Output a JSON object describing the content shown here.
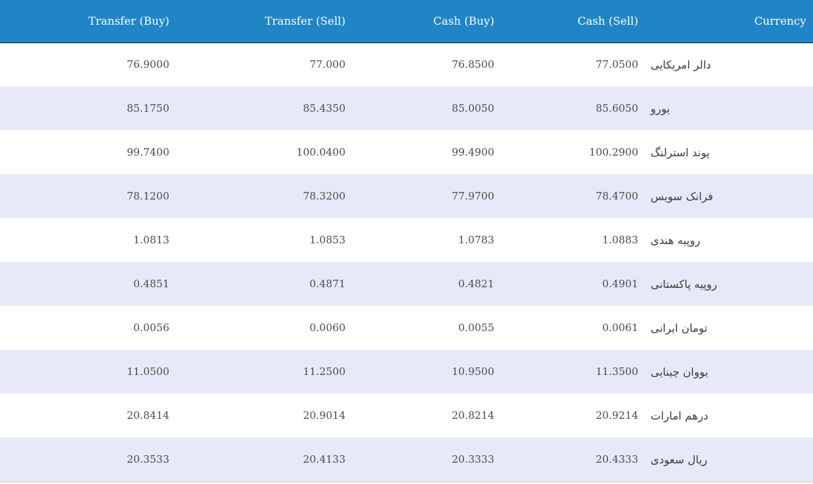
{
  "table": {
    "headers": {
      "transfer_buy": "Transfer (Buy)",
      "transfer_sell": "Transfer (Sell)",
      "cash_buy": "Cash (Buy)",
      "cash_sell": "Cash (Sell)",
      "currency": "Currency"
    },
    "rows": [
      {
        "transfer_buy": "76.9000",
        "transfer_sell": "77.000",
        "cash_buy": "76.8500",
        "cash_sell": "77.0500",
        "currency": "دالر امریکایی"
      },
      {
        "transfer_buy": "85.1750",
        "transfer_sell": "85.4350",
        "cash_buy": "85.0050",
        "cash_sell": "85.6050",
        "currency": "یورو"
      },
      {
        "transfer_buy": "99.7400",
        "transfer_sell": "100.0400",
        "cash_buy": "99.4900",
        "cash_sell": "100.2900",
        "currency": "پوند استرلنگ"
      },
      {
        "transfer_buy": "78.1200",
        "transfer_sell": "78.3200",
        "cash_buy": "77.9700",
        "cash_sell": "78.4700",
        "currency": "فرانک سویس"
      },
      {
        "transfer_buy": "1.0813",
        "transfer_sell": "1.0853",
        "cash_buy": "1.0783",
        "cash_sell": "1.0883",
        "currency": "روپیه هندی"
      },
      {
        "transfer_buy": "0.4851",
        "transfer_sell": "0.4871",
        "cash_buy": "0.4821",
        "cash_sell": "0.4901",
        "currency": "روپیه پاکستانی"
      },
      {
        "transfer_buy": "0.0056",
        "transfer_sell": "0.0060",
        "cash_buy": "0.0055",
        "cash_sell": "0.0061",
        "currency": "تومان ایرانی"
      },
      {
        "transfer_buy": "11.0500",
        "transfer_sell": "11.2500",
        "cash_buy": "10.9500",
        "cash_sell": "11.3500",
        "currency": "یووان چینایی"
      },
      {
        "transfer_buy": "20.8414",
        "transfer_sell": "20.9014",
        "cash_buy": "20.8214",
        "cash_sell": "20.9214",
        "currency": "درهم امارات"
      },
      {
        "transfer_buy": "20.3533",
        "transfer_sell": "20.4133",
        "cash_buy": "20.3333",
        "cash_sell": "20.4333",
        "currency": "ریال سعودی"
      }
    ]
  },
  "colors": {
    "header_background": "#1f85c7",
    "header_text": "#ffffff",
    "row_stripe": "#e8e9f8",
    "row_plain": "#ffffff",
    "cell_text": "#4a4a4a"
  }
}
